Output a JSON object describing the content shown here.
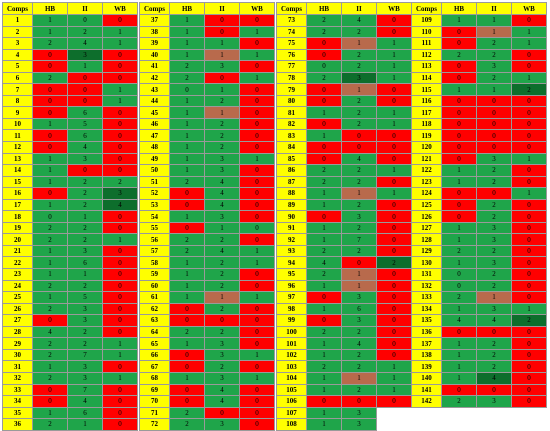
{
  "headers": [
    "Comps",
    "HB",
    "II",
    "WB"
  ],
  "colors": {
    "comps": "#ffff00",
    "green": "#1fa54a",
    "dark_green": "#0d6e2c",
    "red": "#ff0000",
    "brown": "#b86a4c",
    "grid": "#9a9a9a"
  },
  "columns": [
    [
      [
        1,
        "g1",
        "g0",
        "r0"
      ],
      [
        2,
        "g1",
        "g2",
        "g1"
      ],
      [
        3,
        "g2",
        "g4",
        "g1"
      ],
      [
        4,
        "r0",
        "d3",
        "r0"
      ],
      [
        5,
        "r0",
        "g1",
        "r0"
      ],
      [
        6,
        "g2",
        "r0",
        "r0"
      ],
      [
        7,
        "r0",
        "r0",
        "g1"
      ],
      [
        8,
        "r0",
        "r0",
        "g1"
      ],
      [
        9,
        "r0",
        "g6",
        "r0"
      ],
      [
        10,
        "g1",
        "g5",
        "r0"
      ],
      [
        11,
        "r0",
        "g6",
        "r0"
      ],
      [
        12,
        "r0",
        "g4",
        "r0"
      ],
      [
        13,
        "g1",
        "g3",
        "r0"
      ],
      [
        14,
        "g1",
        "r0",
        "r0"
      ],
      [
        15,
        "g1",
        "g2",
        "g2"
      ],
      [
        16,
        "r0",
        "g2",
        "d3"
      ],
      [
        17,
        "g1",
        "g2",
        "d4"
      ],
      [
        18,
        "g0",
        "g1",
        "r0"
      ],
      [
        19,
        "g2",
        "g2",
        "r0"
      ],
      [
        20,
        "g2",
        "g2",
        "g1"
      ],
      [
        21,
        "g1",
        "g3",
        "r0"
      ],
      [
        22,
        "g1",
        "g6",
        "r0"
      ],
      [
        23,
        "g1",
        "g1",
        "r0"
      ],
      [
        24,
        "g2",
        "g2",
        "r0"
      ],
      [
        25,
        "g1",
        "g5",
        "r0"
      ],
      [
        26,
        "g2",
        "g3",
        "r0"
      ],
      [
        27,
        "r0",
        "g3",
        "r0"
      ],
      [
        28,
        "g4",
        "g2",
        "r0"
      ],
      [
        29,
        "g2",
        "g2",
        "g1"
      ],
      [
        30,
        "g2",
        "g7",
        "g1"
      ],
      [
        31,
        "g1",
        "g3",
        "r0"
      ],
      [
        32,
        "g2",
        "g3",
        "g1"
      ],
      [
        33,
        "r0",
        "g7",
        "r0"
      ],
      [
        34,
        "r0",
        "g4",
        "r0"
      ],
      [
        35,
        "g1",
        "g6",
        "r0"
      ],
      [
        36,
        "g2",
        "g1",
        "r0"
      ]
    ],
    [
      [
        37,
        "g1",
        "r0",
        "r0"
      ],
      [
        38,
        "g1",
        "r0",
        "g1"
      ],
      [
        39,
        "g1",
        "g1",
        "r0"
      ],
      [
        40,
        "g1",
        "o1",
        "g1"
      ],
      [
        41,
        "g2",
        "g3",
        "r0"
      ],
      [
        42,
        "g2",
        "r0",
        "g1"
      ],
      [
        43,
        "g0",
        "g1",
        "r0"
      ],
      [
        44,
        "g1",
        "g2",
        "r0"
      ],
      [
        45,
        "g1",
        "o1",
        "r0"
      ],
      [
        46,
        "g1",
        "g2",
        "r0"
      ],
      [
        47,
        "g1",
        "g2",
        "r0"
      ],
      [
        48,
        "g1",
        "g2",
        "r0"
      ],
      [
        49,
        "g1",
        "g3",
        "g1"
      ],
      [
        50,
        "g1",
        "g3",
        "r0"
      ],
      [
        51,
        "g2",
        "g4",
        "r0"
      ],
      [
        52,
        "r0",
        "g4",
        "r0"
      ],
      [
        53,
        "r0",
        "g4",
        "r0"
      ],
      [
        54,
        "g1",
        "g3",
        "r0"
      ],
      [
        55,
        "r0",
        "g1",
        "g0"
      ],
      [
        56,
        "g2",
        "g2",
        "r0"
      ],
      [
        57,
        "g2",
        "g4",
        "g1"
      ],
      [
        58,
        "g1",
        "g2",
        "g1"
      ],
      [
        59,
        "g1",
        "g2",
        "r0"
      ],
      [
        60,
        "g1",
        "g2",
        "r0"
      ],
      [
        61,
        "g1",
        "o1",
        "g1"
      ],
      [
        62,
        "r0",
        "g2",
        "r0"
      ],
      [
        63,
        "r0",
        "r0",
        "r0"
      ],
      [
        64,
        "g2",
        "g2",
        "r0"
      ],
      [
        65,
        "g1",
        "g3",
        "r0"
      ],
      [
        66,
        "r0",
        "g3",
        "g1"
      ],
      [
        67,
        "r0",
        "g2",
        "r0"
      ],
      [
        68,
        "g1",
        "g3",
        "g1"
      ],
      [
        69,
        "r0",
        "g4",
        "r0"
      ],
      [
        70,
        "r0",
        "g4",
        "r0"
      ],
      [
        71,
        "g2",
        "r0",
        "r0"
      ],
      [
        72,
        "g2",
        "g3",
        "r0"
      ]
    ],
    [
      [
        73,
        "g2",
        "g4",
        "r0"
      ],
      [
        74,
        "g2",
        "g2",
        "r0"
      ],
      [
        75,
        "r0",
        "o1",
        "g1"
      ],
      [
        76,
        "r0",
        "g2",
        "g1"
      ],
      [
        77,
        "g0",
        "g2",
        "g1"
      ],
      [
        78,
        "g2",
        "d3",
        "g1"
      ],
      [
        79,
        "r0",
        "o1",
        "r0"
      ],
      [
        80,
        "r0",
        "g2",
        "r0"
      ],
      [
        81,
        "g1",
        "g2",
        "g1"
      ],
      [
        82,
        "r0",
        "g2",
        "g1"
      ],
      [
        83,
        "g1",
        "r0",
        "r0"
      ],
      [
        84,
        "r0",
        "r0",
        "r0"
      ],
      [
        85,
        "r0",
        "g4",
        "r0"
      ],
      [
        86,
        "g2",
        "g2",
        "g1"
      ],
      [
        87,
        "g2",
        "g2",
        "r0"
      ],
      [
        88,
        "g1",
        "o1",
        "g1"
      ],
      [
        89,
        "g1",
        "g2",
        "r0"
      ],
      [
        90,
        "r0",
        "g3",
        "r0"
      ],
      [
        91,
        "g1",
        "g2",
        "r0"
      ],
      [
        92,
        "g1",
        "g7",
        "r0"
      ],
      [
        93,
        "g2",
        "g2",
        "r0"
      ],
      [
        94,
        "g4",
        "r0",
        "d2"
      ],
      [
        95,
        "g2",
        "o1",
        "r0"
      ],
      [
        96,
        "g1",
        "o1",
        "r0"
      ],
      [
        97,
        "r0",
        "g3",
        "r0"
      ],
      [
        98,
        "g1",
        "g6",
        "r0"
      ],
      [
        99,
        "r0",
        "g3",
        "r0"
      ],
      [
        100,
        "g2",
        "g2",
        "r0"
      ],
      [
        101,
        "g1",
        "g4",
        "r0"
      ],
      [
        102,
        "g1",
        "g2",
        "r0"
      ],
      [
        103,
        "g2",
        "g2",
        "g1"
      ],
      [
        104,
        "g1",
        "o1",
        "g1"
      ],
      [
        105,
        "g1",
        "g2",
        "g1"
      ],
      [
        106,
        "r0",
        "r0",
        "r0"
      ],
      [
        107,
        "g1",
        "g3",
        "w"
      ],
      [
        108,
        "g1",
        "g3",
        "w"
      ]
    ],
    [
      [
        109,
        "g1",
        "g1",
        "r0"
      ],
      [
        110,
        "r0",
        "o1",
        "g1"
      ],
      [
        111,
        "r0",
        "g2",
        "g1"
      ],
      [
        112,
        "g2",
        "g2",
        "r0"
      ],
      [
        113,
        "r0",
        "g3",
        "r0"
      ],
      [
        114,
        "r0",
        "g2",
        "g1"
      ],
      [
        115,
        "g1",
        "g1",
        "d2"
      ],
      [
        116,
        "r0",
        "r0",
        "r0"
      ],
      [
        117,
        "r0",
        "r0",
        "r0"
      ],
      [
        118,
        "r0",
        "r0",
        "r0"
      ],
      [
        119,
        "r0",
        "r0",
        "r0"
      ],
      [
        120,
        "r0",
        "r0",
        "r0"
      ],
      [
        121,
        "r0",
        "g3",
        "g1"
      ],
      [
        122,
        "g1",
        "g2",
        "r0"
      ],
      [
        123,
        "g1",
        "g2",
        "r0"
      ],
      [
        124,
        "r0",
        "r0",
        "g1"
      ],
      [
        125,
        "r0",
        "g2",
        "r0"
      ],
      [
        126,
        "r0",
        "g2",
        "r0"
      ],
      [
        127,
        "g1",
        "g3",
        "r0"
      ],
      [
        128,
        "g1",
        "g3",
        "r0"
      ],
      [
        129,
        "g2",
        "g2",
        "r0"
      ],
      [
        130,
        "g1",
        "g3",
        "r0"
      ],
      [
        131,
        "g0",
        "g2",
        "r0"
      ],
      [
        132,
        "g0",
        "g2",
        "r0"
      ],
      [
        133,
        "g2",
        "o1",
        "r0"
      ],
      [
        134,
        "g1",
        "g3",
        "g1"
      ],
      [
        135,
        "g4",
        "g4",
        "d2"
      ],
      [
        136,
        "r0",
        "r0",
        "r0"
      ],
      [
        137,
        "g1",
        "g2",
        "r0"
      ],
      [
        138,
        "g1",
        "g2",
        "r0"
      ],
      [
        139,
        "g1",
        "g2",
        "r0"
      ],
      [
        140,
        "g1",
        "d4",
        "r0"
      ],
      [
        141,
        "r0",
        "r0",
        "r0"
      ],
      [
        142,
        "g2",
        "g3",
        "r0"
      ]
    ]
  ]
}
